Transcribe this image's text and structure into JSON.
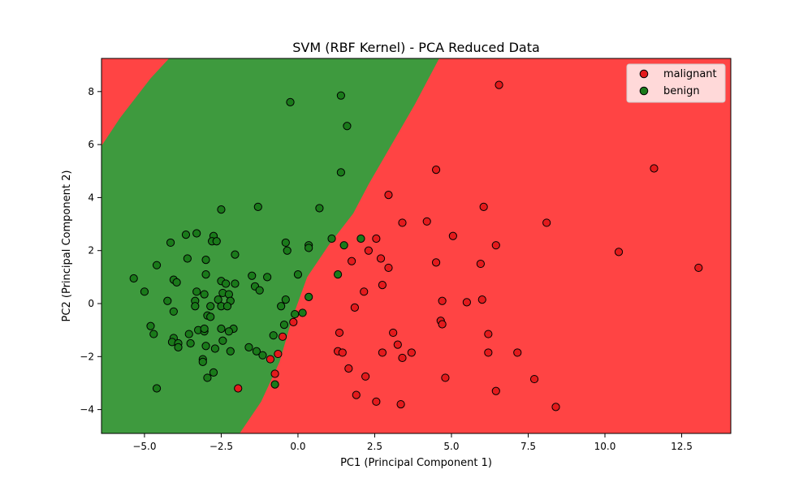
{
  "chart_data": {
    "type": "scatter",
    "title": "SVM (RBF Kernel) - PCA Reduced Data",
    "xlabel": "PC1 (Principal Component 1)",
    "ylabel": "PC2 (Principal Component 2)",
    "xlim": [
      -6.4,
      14.1
    ],
    "ylim": [
      -4.9,
      9.25
    ],
    "xticks": [
      -5.0,
      -2.5,
      0.0,
      2.5,
      5.0,
      7.5,
      10.0,
      12.5
    ],
    "xtick_labels": [
      "−5.0",
      "−2.5",
      "0.0",
      "2.5",
      "5.0",
      "7.5",
      "10.0",
      "12.5"
    ],
    "yticks": [
      -4,
      -2,
      0,
      2,
      4,
      6,
      8
    ],
    "ytick_labels": [
      "−4",
      "−2",
      "0",
      "2",
      "4",
      "6",
      "8"
    ],
    "grid": false,
    "legend_position": "top-right",
    "decision_regions": {
      "colors": {
        "malignant": "#ff4444",
        "benign": "#3e9a3e"
      },
      "benign_band_left_edge": [
        [
          -6.4,
          5.95
        ],
        [
          -5.8,
          7.0
        ],
        [
          -4.8,
          8.5
        ],
        [
          -4.2,
          9.25
        ]
      ],
      "benign_band_right_edge": [
        [
          -1.9,
          -4.9
        ],
        [
          -1.2,
          -3.7
        ],
        [
          -0.6,
          -2.2
        ],
        [
          -0.2,
          -0.6
        ],
        [
          0.3,
          1.0
        ],
        [
          1.0,
          2.2
        ],
        [
          1.8,
          3.4
        ],
        [
          2.3,
          4.5
        ],
        [
          3.0,
          5.9
        ],
        [
          3.8,
          7.5
        ],
        [
          4.6,
          9.25
        ]
      ]
    },
    "series": [
      {
        "name": "malignant",
        "color": "#e41a1c",
        "points": [
          [
            6.55,
            8.25
          ],
          [
            4.5,
            5.05
          ],
          [
            11.6,
            5.1
          ],
          [
            2.95,
            4.1
          ],
          [
            3.4,
            3.05
          ],
          [
            4.2,
            3.1
          ],
          [
            6.05,
            3.65
          ],
          [
            8.1,
            3.05
          ],
          [
            5.05,
            2.55
          ],
          [
            2.55,
            2.45
          ],
          [
            6.45,
            2.2
          ],
          [
            10.45,
            1.95
          ],
          [
            13.05,
            1.35
          ],
          [
            2.3,
            2.0
          ],
          [
            2.7,
            1.7
          ],
          [
            1.75,
            1.6
          ],
          [
            2.95,
            1.35
          ],
          [
            4.5,
            1.55
          ],
          [
            5.95,
            1.5
          ],
          [
            2.15,
            0.45
          ],
          [
            2.75,
            0.7
          ],
          [
            4.7,
            0.1
          ],
          [
            5.5,
            0.05
          ],
          [
            6.0,
            0.15
          ],
          [
            1.85,
            -0.15
          ],
          [
            4.65,
            -0.65
          ],
          [
            4.7,
            -0.78
          ],
          [
            1.35,
            -1.1
          ],
          [
            3.1,
            -1.1
          ],
          [
            6.2,
            -1.15
          ],
          [
            3.25,
            -1.55
          ],
          [
            1.3,
            -1.8
          ],
          [
            1.45,
            -1.85
          ],
          [
            2.75,
            -1.85
          ],
          [
            3.4,
            -2.05
          ],
          [
            3.7,
            -1.85
          ],
          [
            6.2,
            -1.85
          ],
          [
            7.15,
            -1.85
          ],
          [
            1.65,
            -2.45
          ],
          [
            2.2,
            -2.75
          ],
          [
            4.8,
            -2.8
          ],
          [
            7.7,
            -2.85
          ],
          [
            1.9,
            -3.45
          ],
          [
            2.55,
            -3.7
          ],
          [
            3.35,
            -3.8
          ],
          [
            6.45,
            -3.3
          ],
          [
            8.4,
            -3.9
          ],
          [
            -0.15,
            -0.7
          ],
          [
            -0.5,
            -1.25
          ],
          [
            -0.65,
            -1.9
          ],
          [
            -0.9,
            -2.1
          ],
          [
            -0.75,
            -2.65
          ],
          [
            -1.95,
            -3.2
          ]
        ]
      },
      {
        "name": "benign",
        "color": "#1a7a1a",
        "points": [
          [
            -0.25,
            7.6
          ],
          [
            1.4,
            7.85
          ],
          [
            1.6,
            6.7
          ],
          [
            1.4,
            4.95
          ],
          [
            -1.3,
            3.65
          ],
          [
            -2.5,
            3.55
          ],
          [
            0.7,
            3.6
          ],
          [
            -3.65,
            2.6
          ],
          [
            -3.3,
            2.65
          ],
          [
            -2.75,
            2.55
          ],
          [
            -2.8,
            2.35
          ],
          [
            -2.65,
            2.35
          ],
          [
            -4.15,
            2.3
          ],
          [
            -0.4,
            2.3
          ],
          [
            0.35,
            2.2
          ],
          [
            0.35,
            2.1
          ],
          [
            -0.35,
            2.0
          ],
          [
            1.1,
            2.45
          ],
          [
            1.5,
            2.2
          ],
          [
            2.05,
            2.45
          ],
          [
            -2.05,
            1.85
          ],
          [
            -3.6,
            1.7
          ],
          [
            -3.0,
            1.65
          ],
          [
            -4.6,
            1.45
          ],
          [
            -3.0,
            1.1
          ],
          [
            -1.5,
            1.05
          ],
          [
            -1.0,
            1.0
          ],
          [
            0.0,
            1.1
          ],
          [
            1.3,
            1.1
          ],
          [
            -5.35,
            0.95
          ],
          [
            -4.05,
            0.9
          ],
          [
            -3.95,
            0.8
          ],
          [
            -2.5,
            0.85
          ],
          [
            -2.35,
            0.75
          ],
          [
            -2.05,
            0.75
          ],
          [
            -1.4,
            0.65
          ],
          [
            -1.25,
            0.5
          ],
          [
            -5.0,
            0.45
          ],
          [
            -3.3,
            0.45
          ],
          [
            -3.05,
            0.35
          ],
          [
            -2.45,
            0.4
          ],
          [
            -2.25,
            0.35
          ],
          [
            -4.25,
            0.1
          ],
          [
            -3.35,
            0.1
          ],
          [
            -2.6,
            0.15
          ],
          [
            -2.2,
            0.1
          ],
          [
            -0.4,
            0.15
          ],
          [
            0.35,
            0.25
          ],
          [
            -3.35,
            -0.1
          ],
          [
            -2.85,
            -0.1
          ],
          [
            -2.5,
            -0.1
          ],
          [
            -2.3,
            -0.1
          ],
          [
            -0.55,
            -0.1
          ],
          [
            -4.05,
            -0.3
          ],
          [
            -2.95,
            -0.45
          ],
          [
            -2.85,
            -0.5
          ],
          [
            -0.1,
            -0.4
          ],
          [
            0.15,
            -0.35
          ],
          [
            -4.8,
            -0.85
          ],
          [
            -3.25,
            -1.0
          ],
          [
            -2.5,
            -0.95
          ],
          [
            -2.1,
            -0.95
          ],
          [
            -0.45,
            -0.8
          ],
          [
            -4.7,
            -1.15
          ],
          [
            -4.05,
            -1.3
          ],
          [
            -3.55,
            -1.15
          ],
          [
            -3.05,
            -1.05
          ],
          [
            -3.05,
            -0.95
          ],
          [
            -2.25,
            -1.05
          ],
          [
            -0.8,
            -1.2
          ],
          [
            -4.1,
            -1.45
          ],
          [
            -3.9,
            -1.5
          ],
          [
            -3.5,
            -1.5
          ],
          [
            -3.0,
            -1.6
          ],
          [
            -2.7,
            -1.7
          ],
          [
            -2.45,
            -1.4
          ],
          [
            -1.6,
            -1.65
          ],
          [
            -3.9,
            -1.65
          ],
          [
            -2.2,
            -1.8
          ],
          [
            -1.35,
            -1.8
          ],
          [
            -1.15,
            -1.95
          ],
          [
            -3.1,
            -2.1
          ],
          [
            -3.1,
            -2.2
          ],
          [
            -2.75,
            -2.6
          ],
          [
            -2.95,
            -2.8
          ],
          [
            -4.6,
            -3.2
          ],
          [
            -0.75,
            -3.05
          ]
        ]
      }
    ]
  }
}
